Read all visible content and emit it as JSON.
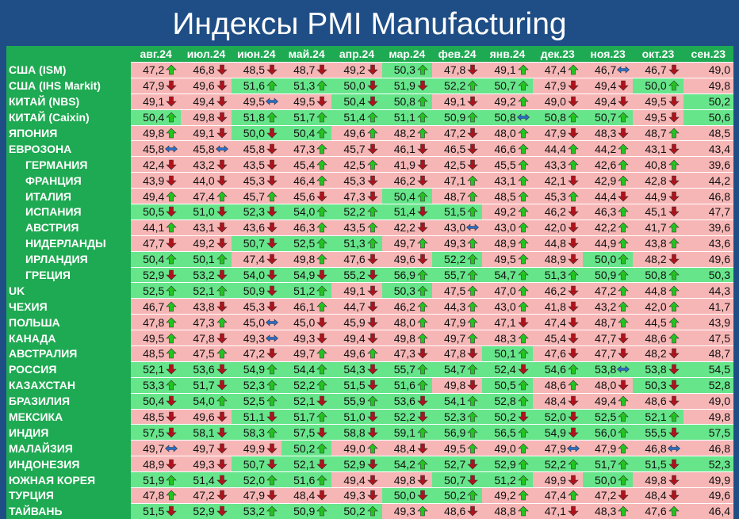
{
  "header": {
    "title": "Индексы PMI Manufacturing"
  },
  "table": {
    "columns": [
      "авг.24",
      "июл.24",
      "июн.24",
      "май.24",
      "апр.24",
      "мар.24",
      "фев.24",
      "янв.24",
      "дек.23",
      "ноя.23",
      "окт.23",
      "сен.23"
    ],
    "threshold": 50,
    "colors": {
      "high": "#67e58b",
      "low": "#f7b6b6",
      "up": "#22c41e",
      "down": "#b0121b",
      "flat": "#2a6fc9"
    },
    "rows": [
      {
        "name": "США (ISM)",
        "values": [
          "47,2",
          "46,8",
          "48,5",
          "48,7",
          "49,2",
          "50,3",
          "47,8",
          "49,1",
          "47,4",
          "46,7",
          "46,7",
          "49,0"
        ]
      },
      {
        "name": "США (IHS Markit)",
        "values": [
          "47,9",
          "49,6",
          "51,6",
          "51,3",
          "50,0",
          "51,9",
          "52,2",
          "50,7",
          "47,9",
          "49,4",
          "50,0",
          "49,8"
        ]
      },
      {
        "name": "КИТАЙ (NBS)",
        "values": [
          "49,1",
          "49,4",
          "49,5",
          "49,5",
          "50,4",
          "50,8",
          "49,1",
          "49,2",
          "49,0",
          "49,4",
          "49,5",
          "50,2"
        ]
      },
      {
        "name": "КИТАЙ (Caixin)",
        "values": [
          "50,4",
          "49,8",
          "51,8",
          "51,7",
          "51,4",
          "51,1",
          "50,9",
          "50,8",
          "50,8",
          "50,7",
          "49,5",
          "50,6"
        ]
      },
      {
        "name": "ЯПОНИЯ",
        "values": [
          "49,8",
          "49,1",
          "50,0",
          "50,4",
          "49,6",
          "48,2",
          "47,2",
          "48,0",
          "47,9",
          "48,3",
          "48,7",
          "48,5"
        ]
      },
      {
        "name": "ЕВРОЗОНА",
        "values": [
          "45,8",
          "45,8",
          "45,8",
          "47,3",
          "45,7",
          "46,1",
          "46,5",
          "46,6",
          "44,4",
          "44,2",
          "43,1",
          "43,4"
        ]
      },
      {
        "name": "ГЕРМАНИЯ",
        "indent": true,
        "values": [
          "42,4",
          "43,2",
          "43,5",
          "45,4",
          "42,5",
          "41,9",
          "42,5",
          "45,5",
          "43,3",
          "42,6",
          "40,8",
          "39,6"
        ]
      },
      {
        "name": "ФРАНЦИЯ",
        "indent": true,
        "values": [
          "43,9",
          "44,0",
          "45,3",
          "46,4",
          "45,3",
          "46,2",
          "47,1",
          "43,1",
          "42,1",
          "42,9",
          "42,8",
          "44,2"
        ]
      },
      {
        "name": "ИТАЛИЯ",
        "indent": true,
        "values": [
          "49,4",
          "47,4",
          "45,7",
          "45,6",
          "47,3",
          "50,4",
          "48,7",
          "48,5",
          "45,3",
          "44,4",
          "44,9",
          "46,8"
        ]
      },
      {
        "name": "ИСПАНИЯ",
        "indent": true,
        "values": [
          "50,5",
          "51,0",
          "52,3",
          "54,0",
          "52,2",
          "51,4",
          "51,5",
          "49,2",
          "46,2",
          "46,3",
          "45,1",
          "47,7"
        ]
      },
      {
        "name": "АВСТРИЯ",
        "indent": true,
        "values": [
          "44,1",
          "43,1",
          "43,6",
          "46,3",
          "43,5",
          "42,2",
          "43,0",
          "43,0",
          "42,0",
          "42,2",
          "41,7",
          "39,6"
        ]
      },
      {
        "name": "НИДЕРЛАНДЫ",
        "indent": true,
        "values": [
          "47,7",
          "49,2",
          "50,7",
          "52,5",
          "51,3",
          "49,7",
          "49,3",
          "48,9",
          "44,8",
          "44,9",
          "43,8",
          "43,6"
        ]
      },
      {
        "name": "ИРЛАНДИЯ",
        "indent": true,
        "values": [
          "50,4",
          "50,1",
          "47,4",
          "49,8",
          "47,6",
          "49,6",
          "52,2",
          "49,5",
          "48,9",
          "50,0",
          "48,2",
          "49,6"
        ]
      },
      {
        "name": "ГРЕЦИЯ",
        "indent": true,
        "values": [
          "52,9",
          "53,2",
          "54,0",
          "54,9",
          "55,2",
          "56,9",
          "55,7",
          "54,7",
          "51,3",
          "50,9",
          "50,8",
          "50,3"
        ]
      },
      {
        "name": "UK",
        "values": [
          "52,5",
          "52,1",
          "50,9",
          "51,2",
          "49,1",
          "50,3",
          "47,5",
          "47,0",
          "46,2",
          "47,2",
          "44,8",
          "44,3"
        ]
      },
      {
        "name": "ЧЕХИЯ",
        "values": [
          "46,7",
          "43,8",
          "45,3",
          "46,1",
          "44,7",
          "46,2",
          "44,3",
          "43,0",
          "41,8",
          "43,2",
          "42,0",
          "41,7"
        ]
      },
      {
        "name": "ПОЛЬША",
        "values": [
          "47,8",
          "47,3",
          "45,0",
          "45,0",
          "45,9",
          "48,0",
          "47,9",
          "47,1",
          "47,4",
          "48,7",
          "44,5",
          "43,9"
        ]
      },
      {
        "name": "КАНАДА",
        "values": [
          "49,5",
          "47,8",
          "49,3",
          "49,3",
          "49,4",
          "49,8",
          "49,7",
          "48,3",
          "45,4",
          "47,7",
          "48,6",
          "47,5"
        ]
      },
      {
        "name": "АВСТРАЛИЯ",
        "values": [
          "48,5",
          "47,5",
          "47,2",
          "49,7",
          "49,6",
          "47,3",
          "47,8",
          "50,1",
          "47,6",
          "47,7",
          "48,2",
          "48,7"
        ]
      },
      {
        "name": "РОССИЯ",
        "values": [
          "52,1",
          "53,6",
          "54,9",
          "54,4",
          "54,3",
          "55,7",
          "54,7",
          "52,4",
          "54,6",
          "53,8",
          "53,8",
          "54,5"
        ]
      },
      {
        "name": "КАЗАХСТАН",
        "values": [
          "53,3",
          "51,7",
          "52,3",
          "52,2",
          "51,5",
          "51,6",
          "49,8",
          "50,5",
          "48,6",
          "48,0",
          "50,3",
          "52,8"
        ]
      },
      {
        "name": "БРАЗИЛИЯ",
        "values": [
          "50,4",
          "54,0",
          "52,5",
          "52,1",
          "55,9",
          "53,6",
          "54,1",
          "52,8",
          "48,4",
          "49,4",
          "48,6",
          "49,0"
        ]
      },
      {
        "name": "МЕКСИКА",
        "values": [
          "48,5",
          "49,6",
          "51,1",
          "51,7",
          "51,0",
          "52,2",
          "52,3",
          "50,2",
          "52,0",
          "52,5",
          "52,1",
          "49,8"
        ]
      },
      {
        "name": "ИНДИЯ",
        "values": [
          "57,5",
          "58,1",
          "58,3",
          "57,5",
          "58,8",
          "59,1",
          "56,9",
          "56,5",
          "54,9",
          "56,0",
          "55,5",
          "57,5"
        ]
      },
      {
        "name": "МАЛАЙЗИЯ",
        "values": [
          "49,7",
          "49,7",
          "49,9",
          "50,2",
          "49,0",
          "48,4",
          "49,5",
          "49,0",
          "47,9",
          "47,9",
          "46,8",
          "46,8"
        ]
      },
      {
        "name": "ИНДОНЕЗИЯ",
        "values": [
          "48,9",
          "49,3",
          "50,7",
          "52,1",
          "52,9",
          "54,2",
          "52,7",
          "52,9",
          "52,2",
          "51,7",
          "51,5",
          "52,3"
        ]
      },
      {
        "name": "ЮЖНАЯ КОРЕЯ",
        "values": [
          "51,9",
          "51,4",
          "52,0",
          "51,6",
          "49,4",
          "49,8",
          "50,7",
          "51,2",
          "49,9",
          "50,0",
          "49,8",
          "49,9"
        ]
      },
      {
        "name": "ТУРЦИЯ",
        "values": [
          "47,8",
          "47,2",
          "47,9",
          "48,4",
          "49,3",
          "50,0",
          "50,2",
          "49,2",
          "47,4",
          "47,2",
          "48,4",
          "49,6"
        ]
      },
      {
        "name": "ТАЙВАНЬ",
        "values": [
          "51,5",
          "52,9",
          "53,2",
          "50,9",
          "50,2",
          "49,3",
          "48,6",
          "48,8",
          "47,1",
          "48,3",
          "47,6",
          "46,4"
        ]
      }
    ]
  }
}
